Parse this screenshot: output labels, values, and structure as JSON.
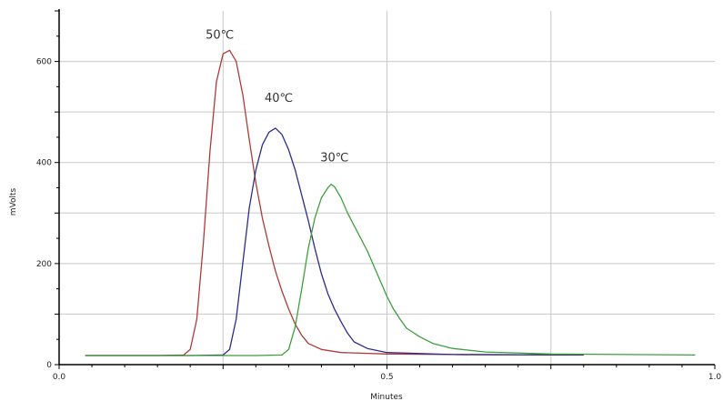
{
  "chart_data": {
    "type": "line",
    "xlabel": "Minutes",
    "ylabel": "mVolts",
    "xlim": [
      0,
      1.0
    ],
    "ylim": [
      0,
      700
    ],
    "grid": true,
    "x_tick_labels": [
      {
        "value": 0.0,
        "label": "0.0"
      },
      {
        "value": 0.5,
        "label": "0.5"
      },
      {
        "value": 1.0,
        "label": "1.0"
      }
    ],
    "x_grid": [
      0.25,
      0.5,
      0.75
    ],
    "x_minor_step": 0.05,
    "y_tick_labels": [
      {
        "value": 0,
        "label": "0"
      },
      {
        "value": 200,
        "label": "200"
      },
      {
        "value": 400,
        "label": "400"
      },
      {
        "value": 600,
        "label": "600"
      }
    ],
    "y_grid": [
      100,
      200,
      300,
      400,
      500,
      600
    ],
    "y_minor_step": 50,
    "series": [
      {
        "color": "#b03a3a",
        "points": [
          [
            0.04,
            18
          ],
          [
            0.15,
            18
          ],
          [
            0.19,
            19
          ],
          [
            0.2,
            30
          ],
          [
            0.21,
            90
          ],
          [
            0.22,
            240
          ],
          [
            0.23,
            420
          ],
          [
            0.24,
            560
          ],
          [
            0.25,
            615
          ],
          [
            0.26,
            622
          ],
          [
            0.27,
            600
          ],
          [
            0.28,
            535
          ],
          [
            0.29,
            445
          ],
          [
            0.3,
            360
          ],
          [
            0.31,
            290
          ],
          [
            0.32,
            235
          ],
          [
            0.33,
            185
          ],
          [
            0.34,
            145
          ],
          [
            0.35,
            110
          ],
          [
            0.36,
            80
          ],
          [
            0.37,
            58
          ],
          [
            0.38,
            42
          ],
          [
            0.4,
            30
          ],
          [
            0.43,
            24
          ],
          [
            0.5,
            21
          ],
          [
            0.6,
            20
          ],
          [
            0.8,
            19
          ]
        ]
      },
      {
        "color": "#2d2d8c",
        "points": [
          [
            0.04,
            18
          ],
          [
            0.2,
            18
          ],
          [
            0.25,
            19
          ],
          [
            0.26,
            30
          ],
          [
            0.27,
            90
          ],
          [
            0.28,
            200
          ],
          [
            0.29,
            310
          ],
          [
            0.3,
            385
          ],
          [
            0.31,
            435
          ],
          [
            0.32,
            460
          ],
          [
            0.33,
            468
          ],
          [
            0.34,
            455
          ],
          [
            0.35,
            425
          ],
          [
            0.36,
            385
          ],
          [
            0.37,
            335
          ],
          [
            0.38,
            285
          ],
          [
            0.39,
            230
          ],
          [
            0.4,
            180
          ],
          [
            0.41,
            140
          ],
          [
            0.42,
            110
          ],
          [
            0.43,
            85
          ],
          [
            0.44,
            62
          ],
          [
            0.45,
            45
          ],
          [
            0.47,
            32
          ],
          [
            0.5,
            24
          ],
          [
            0.6,
            20
          ],
          [
            0.8,
            19
          ]
        ]
      },
      {
        "color": "#3f9f3f",
        "points": [
          [
            0.04,
            18
          ],
          [
            0.3,
            18
          ],
          [
            0.34,
            19
          ],
          [
            0.35,
            30
          ],
          [
            0.36,
            75
          ],
          [
            0.37,
            150
          ],
          [
            0.38,
            230
          ],
          [
            0.39,
            290
          ],
          [
            0.4,
            330
          ],
          [
            0.41,
            350
          ],
          [
            0.415,
            357
          ],
          [
            0.42,
            352
          ],
          [
            0.43,
            330
          ],
          [
            0.44,
            300
          ],
          [
            0.45,
            275
          ],
          [
            0.46,
            250
          ],
          [
            0.47,
            225
          ],
          [
            0.48,
            195
          ],
          [
            0.49,
            165
          ],
          [
            0.5,
            135
          ],
          [
            0.51,
            110
          ],
          [
            0.52,
            90
          ],
          [
            0.53,
            72
          ],
          [
            0.55,
            55
          ],
          [
            0.57,
            42
          ],
          [
            0.6,
            32
          ],
          [
            0.65,
            25
          ],
          [
            0.75,
            21
          ],
          [
            0.97,
            19
          ]
        ]
      }
    ],
    "annotations": [
      {
        "text": "50℃",
        "x": 0.245,
        "y": 645
      },
      {
        "text": "40℃",
        "x": 0.335,
        "y": 520
      },
      {
        "text": "30℃",
        "x": 0.42,
        "y": 402
      }
    ]
  }
}
